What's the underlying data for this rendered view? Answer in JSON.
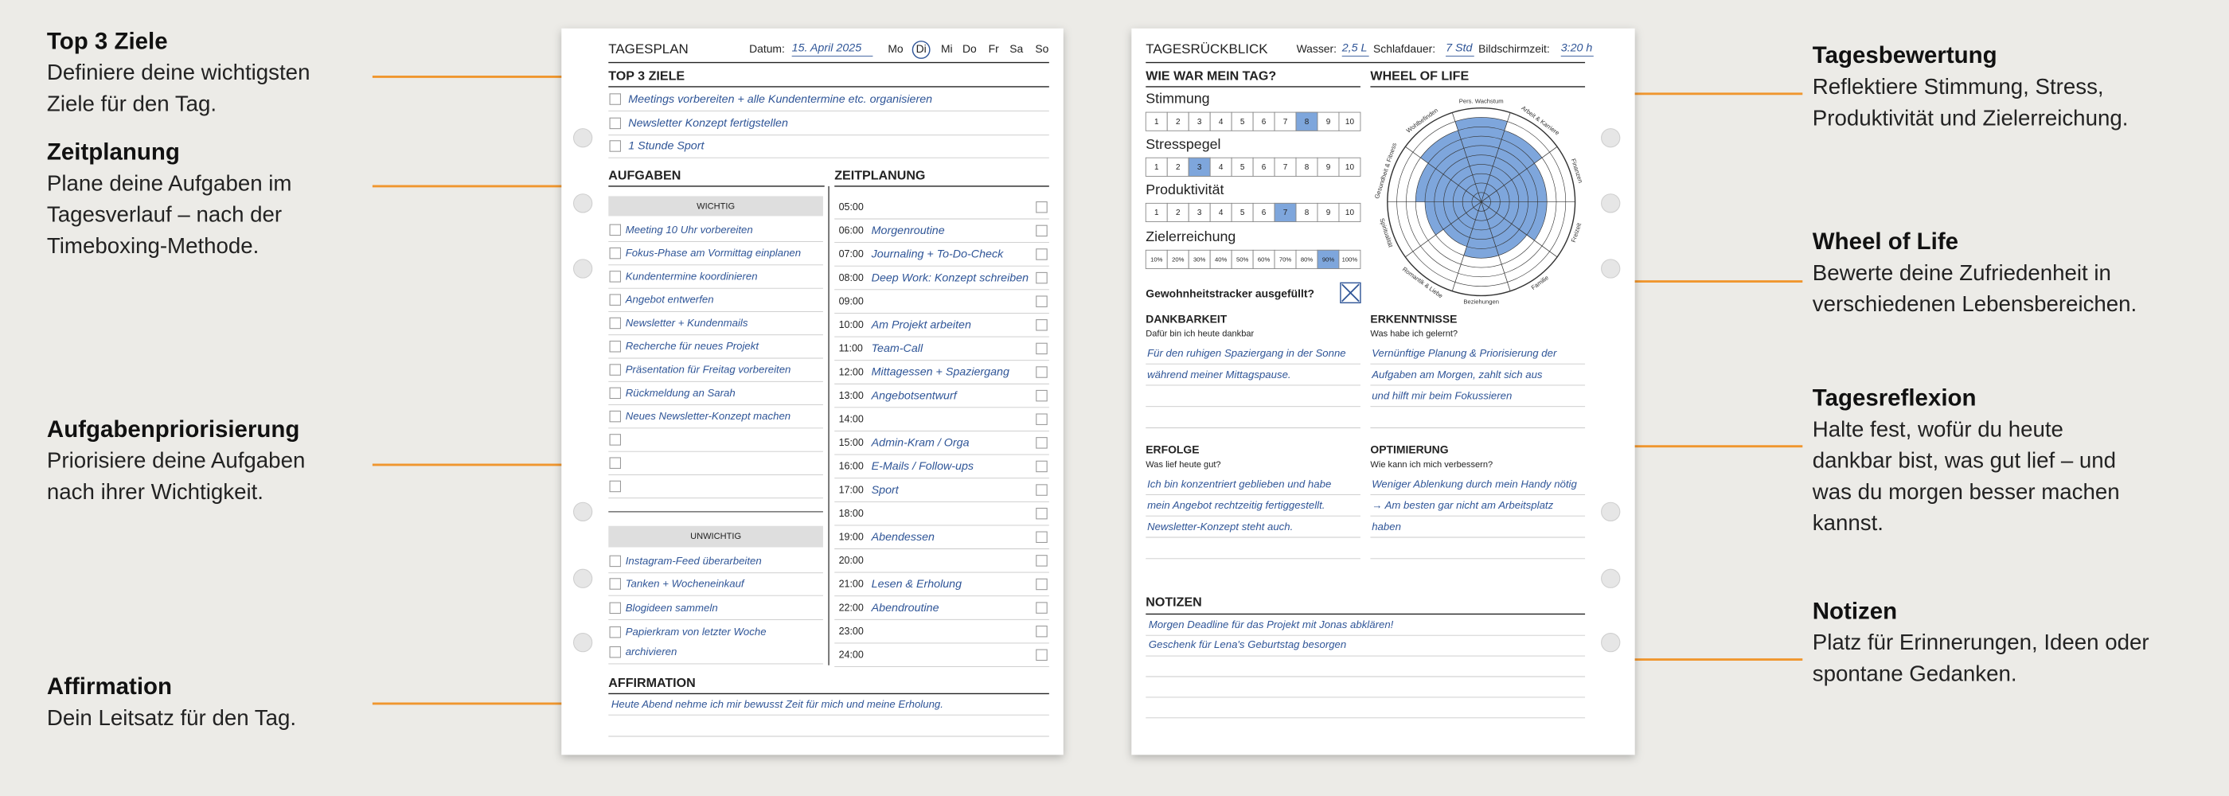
{
  "annotations": {
    "left": [
      {
        "title": "Top 3 Ziele",
        "lines": [
          "Definiere deine wichtigsten",
          "Ziele für den Tag."
        ]
      },
      {
        "title": "Zeitplanung",
        "lines": [
          "Plane deine Aufgaben im",
          "Tagesverlauf – nach der",
          "Timeboxing-Methode."
        ]
      },
      {
        "title": "Aufgabenpriorisierung",
        "lines": [
          "Priorisiere deine Aufgaben",
          "nach ihrer Wichtigkeit."
        ]
      },
      {
        "title": "Affirmation",
        "lines": [
          "Dein Leitsatz für den Tag."
        ]
      }
    ],
    "right": [
      {
        "title": "Tagesbewertung",
        "lines": [
          "Reflektiere Stimmung, Stress,",
          "Produktivität und Zielerreichung."
        ]
      },
      {
        "title": "Wheel of Life",
        "lines": [
          "Bewerte deine Zufriedenheit in",
          "verschiedenen Lebensbereichen."
        ]
      },
      {
        "title": "Tagesreflexion",
        "lines": [
          "Halte fest, wofür du heute",
          "dankbar bist, was gut lief – und",
          "was du morgen besser machen",
          "kannst."
        ]
      },
      {
        "title": "Notizen",
        "lines": [
          "Platz für Erinnerungen, Ideen oder",
          "spontane Gedanken."
        ]
      }
    ]
  },
  "tagesplan": {
    "title": "TAGESPLAN",
    "date_label": "Datum:",
    "date": "15. April 2025",
    "days": [
      {
        "label": "Mo"
      },
      {
        "label": "Di",
        "selected": true
      },
      {
        "label": "Mi"
      },
      {
        "label": "Do"
      },
      {
        "label": "Fr"
      },
      {
        "label": "Sa"
      },
      {
        "label": "So"
      }
    ],
    "top3": {
      "title": "TOP 3 ZIELE",
      "items": [
        "Meetings vorbereiten + alle Kundentermine etc. organisieren",
        "Newsletter Konzept fertigstellen",
        "1 Stunde Sport"
      ]
    },
    "aufgaben": {
      "title": "AUFGABEN",
      "wichtig": {
        "title": "WICHTIG",
        "items": [
          "Meeting 10 Uhr vorbereiten",
          "Fokus-Phase am Vormittag einplanen",
          "Kundentermine koordinieren",
          "Angebot entwerfen",
          "Newsletter + Kundenmails",
          "Recherche für neues Projekt",
          "Präsentation für Freitag vorbereiten",
          "Rückmeldung an Sarah",
          "Neues Newsletter-Konzept machen"
        ]
      },
      "unwichtig": {
        "title": "UNWICHTIG",
        "items": [
          "Instagram-Feed überarbeiten",
          "Tanken + Wocheneinkauf",
          "Blogideen sammeln",
          [
            "Papierkram von letzter Woche",
            "archivieren"
          ]
        ]
      }
    },
    "zeitplanung": {
      "title": "ZEITPLANUNG",
      "slots": [
        {
          "time": "05:00"
        },
        {
          "time": "06:00",
          "entry": "Morgenroutine"
        },
        {
          "time": "07:00",
          "entry": "Journaling + To-Do-Check"
        },
        {
          "time": "08:00",
          "entry": "Deep Work: Konzept schreiben"
        },
        {
          "time": "09:00"
        },
        {
          "time": "10:00",
          "entry": "Am Projekt arbeiten"
        },
        {
          "time": "11:00",
          "entry": "Team-Call"
        },
        {
          "time": "12:00",
          "entry": "Mittagessen + Spaziergang"
        },
        {
          "time": "13:00",
          "entry": "Angebotsentwurf"
        },
        {
          "time": "14:00"
        },
        {
          "time": "15:00",
          "entry": "Admin-Kram / Orga"
        },
        {
          "time": "16:00",
          "entry": "E-Mails / Follow-ups"
        },
        {
          "time": "17:00",
          "entry": "Sport"
        },
        {
          "time": "18:00"
        },
        {
          "time": "19:00",
          "entry": "Abendessen"
        },
        {
          "time": "20:00"
        },
        {
          "time": "21:00",
          "entry": "Lesen & Erholung"
        },
        {
          "time": "22:00",
          "entry": "Abendroutine"
        },
        {
          "time": "23:00"
        },
        {
          "time": "24:00"
        }
      ]
    },
    "affirmation": {
      "title": "AFFIRMATION",
      "text": "Heute Abend nehme ich mir bewusst Zeit für mich und meine Erholung."
    }
  },
  "tagesrueckblick": {
    "title": "TAGESRÜCKBLICK",
    "stats": [
      {
        "label": "Wasser:",
        "value": "2,5 L"
      },
      {
        "label": "Schlafdauer:",
        "value": "7 Std"
      },
      {
        "label": "Bildschirmzeit:",
        "value": "3:20 h"
      }
    ],
    "rating": {
      "title": "WIE WAR MEIN TAG?",
      "scales": [
        {
          "label": "Stimmung",
          "scale": [
            1,
            2,
            3,
            4,
            5,
            6,
            7,
            8,
            9,
            10
          ],
          "selected": 8
        },
        {
          "label": "Stresspegel",
          "scale": [
            1,
            2,
            3,
            4,
            5,
            6,
            7,
            8,
            9,
            10
          ],
          "selected": 3
        },
        {
          "label": "Produktivität",
          "scale": [
            1,
            2,
            3,
            4,
            5,
            6,
            7,
            8,
            9,
            10
          ],
          "selected": 7
        },
        {
          "label": "Zielerreichung",
          "scale": [
            {
              "value": 10,
              "label": "10%"
            },
            {
              "value": 20,
              "label": "20%"
            },
            {
              "value": 30,
              "label": "30%"
            },
            {
              "value": 40,
              "label": "40%"
            },
            {
              "value": 50,
              "label": "50%"
            },
            {
              "value": 60,
              "label": "60%"
            },
            {
              "value": 70,
              "label": "70%"
            },
            {
              "value": 80,
              "label": "80%"
            },
            {
              "value": 90,
              "label": "90%"
            },
            {
              "value": 100,
              "label": "100%"
            }
          ],
          "selected": 90
        }
      ]
    },
    "wheel_of_life": {
      "title": "WHEEL OF LIFE",
      "rlim": [
        0,
        10
      ],
      "color": "#7ea6dc",
      "segments": [
        {
          "label": "Wohlbefinden",
          "value": 8
        },
        {
          "label": "Pers. Wachstum",
          "value": 9
        },
        {
          "label": "Arbeit & Karriere",
          "value": 8
        },
        {
          "label": "Finanzen",
          "value": 7
        },
        {
          "label": "Freizeit",
          "value": 7
        },
        {
          "label": "Familie",
          "value": 6
        },
        {
          "label": "Beziehungen",
          "value": 6
        },
        {
          "label": "Romantik & Liebe",
          "value": 5
        },
        {
          "label": "Spiritualität",
          "value": 6
        },
        {
          "label": "Gesundheit & Fitness",
          "value": 7
        }
      ]
    },
    "habit": {
      "label": "Gewohnheitstracker ausgefüllt?",
      "checked": true
    },
    "reflections": [
      {
        "title": "DANKBARKEIT",
        "prompt": "Dafür bin ich heute dankbar",
        "lines": [
          "Für den ruhigen Spaziergang in der Sonne",
          "während meiner Mittagspause."
        ]
      },
      {
        "title": "ERKENNTNISSE",
        "prompt": "Was habe ich gelernt?",
        "lines": [
          "Vernünftige Planung & Priorisierung der",
          "Aufgaben am Morgen, zahlt sich aus",
          "und hilft mir beim Fokussieren"
        ]
      },
      {
        "title": "ERFOLGE",
        "prompt": "Was lief heute gut?",
        "lines": [
          "Ich bin konzentriert geblieben und habe",
          "mein Angebot rechtzeitig fertiggestellt.",
          "Newsletter-Konzept steht auch."
        ]
      },
      {
        "title": "OPTIMIERUNG",
        "prompt": "Wie kann ich mich verbessern?",
        "lines": [
          "Weniger Ablenkung durch mein Handy nötig",
          "→ Am besten gar nicht am Arbeitsplatz",
          "haben"
        ]
      }
    ],
    "notizen": {
      "title": "NOTIZEN",
      "lines": [
        "Morgen Deadline für das Projekt mit Jonas abklären!",
        "Geschenk für Lena's Geburtstag besorgen"
      ]
    }
  }
}
